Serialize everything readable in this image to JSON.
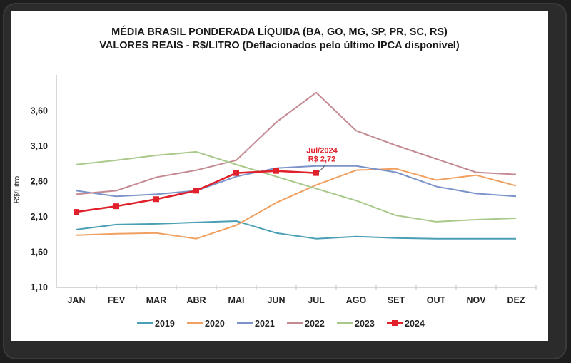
{
  "chart_data": {
    "type": "line",
    "title": "MÉDIA BRASIL PONDERADA LÍQUIDA (BA, GO, MG, SP, PR, SC, RS)",
    "subtitle": "VALORES REAIS - R$/LITRO (Deflacionados pelo último IPCA disponível)",
    "xlabel": "",
    "ylabel": "R$/Litro",
    "ylim": [
      1.1,
      4.1
    ],
    "yticks": [
      1.1,
      1.6,
      2.1,
      2.6,
      3.1,
      3.6
    ],
    "ytick_labels": [
      "1,10",
      "1,60",
      "2,10",
      "2,60",
      "3,10",
      "3,60"
    ],
    "grid": false,
    "legend_position": "bottom",
    "categories": [
      "JAN",
      "FEV",
      "MAR",
      "ABR",
      "MAI",
      "JUN",
      "JUL",
      "AGO",
      "SET",
      "OUT",
      "NOV",
      "DEZ"
    ],
    "series": [
      {
        "name": "2019",
        "color": "#4a9fb5",
        "markers": false,
        "values": [
          1.92,
          1.99,
          2.0,
          2.02,
          2.04,
          1.87,
          1.79,
          1.82,
          1.8,
          1.79,
          1.79,
          1.79
        ]
      },
      {
        "name": "2020",
        "color": "#f0a060",
        "markers": false,
        "values": [
          1.84,
          1.86,
          1.87,
          1.79,
          1.98,
          2.3,
          2.55,
          2.76,
          2.78,
          2.62,
          2.69,
          2.54
        ]
      },
      {
        "name": "2021",
        "color": "#7b93c8",
        "markers": false,
        "values": [
          2.47,
          2.39,
          2.42,
          2.47,
          2.67,
          2.79,
          2.82,
          2.82,
          2.73,
          2.53,
          2.43,
          2.39
        ]
      },
      {
        "name": "2022",
        "color": "#c48a92",
        "markers": false,
        "values": [
          2.42,
          2.47,
          2.66,
          2.76,
          2.9,
          3.44,
          3.86,
          3.32,
          3.11,
          2.92,
          2.73,
          2.7
        ]
      },
      {
        "name": "2023",
        "color": "#a9c98a",
        "markers": false,
        "values": [
          2.84,
          2.9,
          2.97,
          3.02,
          2.84,
          2.67,
          2.5,
          2.33,
          2.12,
          2.03,
          2.06,
          2.08
        ]
      },
      {
        "name": "2024",
        "color": "#e0202a",
        "markers": true,
        "values": [
          2.17,
          2.25,
          2.35,
          2.47,
          2.72,
          2.75,
          2.72,
          null,
          null,
          null,
          null,
          null
        ]
      }
    ],
    "annotations": [
      {
        "series": "2024",
        "category": "JUL",
        "lines": [
          "Jul/2024",
          "R$ 2,72"
        ]
      }
    ]
  }
}
